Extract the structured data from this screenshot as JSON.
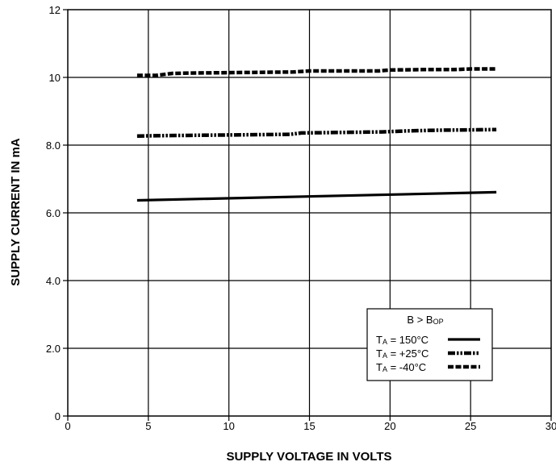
{
  "chart_data": {
    "type": "line",
    "xlabel": "SUPPLY VOLTAGE IN VOLTS",
    "ylabel": "SUPPLY CURRENT IN mA",
    "xlim": [
      0,
      30
    ],
    "ylim": [
      0,
      12
    ],
    "xticks": [
      0,
      5,
      10,
      15,
      20,
      25,
      30
    ],
    "xtick_labels": [
      "0",
      "5",
      "10",
      "15",
      "20",
      "25",
      "30"
    ],
    "yticks": [
      0,
      2,
      4,
      6,
      8,
      10,
      12
    ],
    "ytick_labels": [
      "0",
      "2.0",
      "4.0",
      "6.0",
      "8.0",
      "10",
      "12"
    ],
    "grid": true,
    "legend_position": "bottom-right",
    "legend_title": {
      "main": "B > B",
      "sub": "OP"
    },
    "series": [
      {
        "name_main": "T",
        "name_sub": "A",
        "name_rest": " = 150°C",
        "style": "solid",
        "x": [
          4.3,
          26.6
        ],
        "y": [
          6.37,
          6.61
        ]
      },
      {
        "name_main": "T",
        "name_sub": "A",
        "name_rest": " = +25°C",
        "style": "dash-dot-dot",
        "x": [
          4.3,
          6.0,
          8.0,
          10.0,
          12.0,
          13.8,
          14.5,
          16.0,
          18.0,
          19.5,
          21.0,
          23.0,
          25.0,
          26.6
        ],
        "y": [
          8.27,
          8.28,
          8.29,
          8.3,
          8.31,
          8.32,
          8.36,
          8.37,
          8.38,
          8.39,
          8.42,
          8.44,
          8.45,
          8.46
        ]
      },
      {
        "name_main": "T",
        "name_sub": "A",
        "name_rest": " = -40°C",
        "style": "dashed",
        "x": [
          4.3,
          5.5,
          6.5,
          8.0,
          10.0,
          12.0,
          14.0,
          15.0,
          17.0,
          19.3,
          20.0,
          22.0,
          24.0,
          25.0,
          26.6
        ],
        "y": [
          10.06,
          10.06,
          10.12,
          10.13,
          10.14,
          10.15,
          10.16,
          10.19,
          10.19,
          10.19,
          10.22,
          10.23,
          10.23,
          10.25,
          10.25
        ]
      }
    ]
  }
}
